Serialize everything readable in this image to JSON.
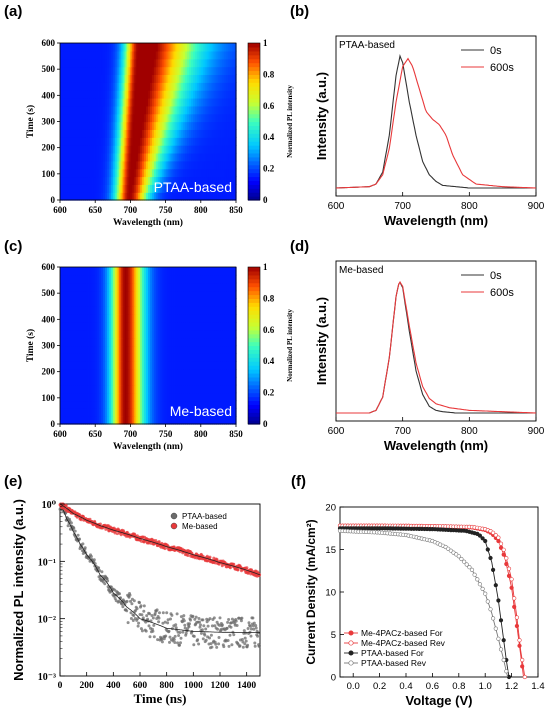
{
  "chart_data": [
    {
      "panel": "(a)",
      "type": "heatmap",
      "xlabel": "Wavelength (nm)",
      "ylabel": "Time (s)",
      "xlim": [
        600,
        850
      ],
      "ylim": [
        0,
        600
      ],
      "xticks": [
        600,
        650,
        700,
        750,
        800,
        850
      ],
      "yticks": [
        0,
        100,
        200,
        300,
        400,
        500,
        600
      ],
      "colorbar_label": "Normalized PL intensity",
      "colorbar_ticks": [
        0,
        0.2,
        0.4,
        0.6,
        0.8,
        1
      ],
      "annotation": "PTAA-based",
      "peak_nm_start": 698,
      "peak_nm_end": 712
    },
    {
      "panel": "(b)",
      "type": "line",
      "xlabel": "Wavelength (nm)",
      "ylabel": "Intensity (a.u.)",
      "xlim": [
        600,
        900
      ],
      "xticks": [
        600,
        700,
        800,
        900
      ],
      "annotation": "PTAA-based",
      "series": [
        {
          "name": "0s",
          "color": "#333333",
          "x": [
            600,
            650,
            660,
            670,
            680,
            690,
            696,
            700,
            710,
            720,
            730,
            740,
            750,
            760,
            780,
            800,
            900
          ],
          "y": [
            0,
            0.01,
            0.03,
            0.12,
            0.4,
            0.85,
            1.0,
            0.95,
            0.65,
            0.4,
            0.2,
            0.1,
            0.05,
            0.02,
            0.01,
            0,
            0
          ]
        },
        {
          "name": "600s",
          "color": "#e8393b",
          "x": [
            600,
            650,
            660,
            670,
            680,
            690,
            700,
            708,
            715,
            725,
            735,
            745,
            755,
            765,
            775,
            790,
            810,
            850,
            900
          ],
          "y": [
            0,
            0.01,
            0.03,
            0.1,
            0.3,
            0.65,
            0.92,
            0.98,
            0.92,
            0.75,
            0.58,
            0.52,
            0.48,
            0.4,
            0.25,
            0.1,
            0.03,
            0.01,
            0
          ]
        }
      ]
    },
    {
      "panel": "(c)",
      "type": "heatmap",
      "xlabel": "Wavelength (nm)",
      "ylabel": "Time (s)",
      "xlim": [
        600,
        850
      ],
      "ylim": [
        0,
        600
      ],
      "xticks": [
        600,
        650,
        700,
        750,
        800,
        850
      ],
      "yticks": [
        0,
        100,
        200,
        300,
        400,
        500,
        600
      ],
      "colorbar_label": "Normalized PL intensity",
      "colorbar_ticks": [
        0,
        0.2,
        0.4,
        0.6,
        0.8,
        1
      ],
      "annotation": "Me-based",
      "peak_nm_start": 693,
      "peak_nm_end": 693
    },
    {
      "panel": "(d)",
      "type": "line",
      "xlabel": "Wavelength (nm)",
      "ylabel": "Intensity (a.u.)",
      "xlim": [
        600,
        900
      ],
      "xticks": [
        600,
        700,
        800,
        900
      ],
      "annotation": "Me-based",
      "series": [
        {
          "name": "0s",
          "color": "#333333",
          "x": [
            600,
            650,
            660,
            670,
            680,
            690,
            695,
            700,
            710,
            720,
            730,
            740,
            750,
            760,
            780,
            900
          ],
          "y": [
            0,
            0,
            0.02,
            0.12,
            0.42,
            0.88,
            1.0,
            0.95,
            0.62,
            0.32,
            0.14,
            0.05,
            0.02,
            0.01,
            0,
            0
          ]
        },
        {
          "name": "600s",
          "color": "#e8393b",
          "x": [
            600,
            650,
            660,
            670,
            680,
            690,
            695,
            700,
            710,
            720,
            730,
            740,
            750,
            770,
            800,
            850,
            900
          ],
          "y": [
            0,
            0,
            0.02,
            0.12,
            0.42,
            0.88,
            1.0,
            0.96,
            0.66,
            0.38,
            0.2,
            0.11,
            0.07,
            0.04,
            0.02,
            0.01,
            0
          ]
        }
      ]
    },
    {
      "panel": "(e)",
      "type": "scatter",
      "xlabel": "Time (ns)",
      "ylabel": "Normalized PL intensity (a.u.)",
      "xlim": [
        0,
        1500
      ],
      "ylim": [
        0.001,
        1
      ],
      "yscale": "log",
      "xticks": [
        0,
        200,
        400,
        600,
        800,
        1000,
        1200,
        1400
      ],
      "yticks": [
        "10⁻³",
        "10⁻²",
        "10⁻¹",
        "10⁰"
      ],
      "legend": "top-right",
      "series": [
        {
          "name": "PTAA-based",
          "color": "#6b6b6b",
          "x": [
            0,
            50,
            100,
            150,
            200,
            300,
            400,
            500,
            600,
            800,
            1000,
            1200,
            1500
          ],
          "y": [
            1.0,
            0.55,
            0.33,
            0.2,
            0.13,
            0.058,
            0.028,
            0.016,
            0.01,
            0.0068,
            0.006,
            0.0058,
            0.0057
          ]
        },
        {
          "name": "Me-based",
          "color": "#e8393b",
          "x": [
            0,
            100,
            200,
            300,
            400,
            600,
            800,
            1000,
            1200,
            1400,
            1500
          ],
          "y": [
            1.0,
            0.68,
            0.52,
            0.42,
            0.35,
            0.25,
            0.18,
            0.13,
            0.095,
            0.07,
            0.058
          ]
        }
      ]
    },
    {
      "panel": "(f)",
      "type": "line",
      "xlabel": "Voltage (V)",
      "ylabel": "Current Density (mA/cm²)",
      "xlim": [
        -0.1,
        1.4
      ],
      "ylim": [
        0,
        20
      ],
      "xticks": [
        0.0,
        0.2,
        0.4,
        0.6,
        0.8,
        1.0,
        1.2,
        1.4
      ],
      "yticks": [
        0,
        5,
        10,
        15,
        20
      ],
      "legend": "bottom-left",
      "series": [
        {
          "name": "Me-4PACz-based For",
          "color": "#e8393b",
          "marker": "filled-circle",
          "x": [
            -0.1,
            0.2,
            0.6,
            0.9,
            1.0,
            1.05,
            1.1,
            1.15,
            1.2,
            1.24,
            1.27,
            1.29
          ],
          "y": [
            17.8,
            17.8,
            17.75,
            17.6,
            17.3,
            16.9,
            16.0,
            14.0,
            10.5,
            6.0,
            2.5,
            0
          ]
        },
        {
          "name": "Me-4PACz-based Rev",
          "color": "#e8393b",
          "marker": "open-circle",
          "x": [
            -0.1,
            0.2,
            0.6,
            0.9,
            1.0,
            1.05,
            1.1,
            1.15,
            1.2,
            1.24,
            1.27,
            1.3
          ],
          "y": [
            17.8,
            17.8,
            17.75,
            17.65,
            17.4,
            17.1,
            16.4,
            14.6,
            11.5,
            7.0,
            3.0,
            0
          ]
        },
        {
          "name": "PTAA-based For",
          "color": "#222222",
          "marker": "filled-circle",
          "x": [
            -0.1,
            0.2,
            0.6,
            0.85,
            0.95,
            1.0,
            1.05,
            1.1,
            1.13,
            1.16,
            1.18
          ],
          "y": [
            17.5,
            17.5,
            17.4,
            17.2,
            16.8,
            16.0,
            13.5,
            9.0,
            5.5,
            2.0,
            0
          ]
        },
        {
          "name": "PTAA-based Rev",
          "color": "#777777",
          "marker": "open-circle",
          "x": [
            -0.1,
            0.2,
            0.4,
            0.6,
            0.7,
            0.8,
            0.9,
            1.0,
            1.05,
            1.1,
            1.14,
            1.17
          ],
          "y": [
            17.2,
            17.0,
            16.7,
            16.0,
            15.3,
            14.2,
            12.6,
            9.8,
            7.5,
            4.5,
            2.0,
            0
          ]
        }
      ]
    }
  ]
}
